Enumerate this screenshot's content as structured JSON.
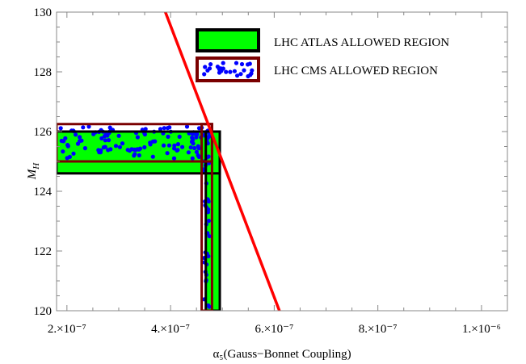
{
  "chart_data": {
    "type": "area",
    "xlabel": "α₅(Gauss−Bonnet Coupling)",
    "ylabel": "M_H",
    "xlim": [
      1.8e-07,
      1.05e-06
    ],
    "ylim": [
      120,
      130
    ],
    "x_ticks": [
      {
        "value": 2e-07,
        "label": "2.×10⁻⁷"
      },
      {
        "value": 4e-07,
        "label": "4.×10⁻⁷"
      },
      {
        "value": 6e-07,
        "label": "6.×10⁻⁷"
      },
      {
        "value": 8e-07,
        "label": "8.×10⁻⁷"
      },
      {
        "value": 1e-06,
        "label": "1.×10⁻⁶"
      }
    ],
    "y_ticks": [
      {
        "value": 120,
        "label": "120"
      },
      {
        "value": 122,
        "label": "122"
      },
      {
        "value": 124,
        "label": "124"
      },
      {
        "value": 126,
        "label": "126"
      },
      {
        "value": 128,
        "label": "128"
      },
      {
        "value": 130,
        "label": "130"
      }
    ],
    "grid": false,
    "legend_position": "top-right",
    "series": [
      {
        "name": "LHC ATLAS ALLOWED REGION",
        "style": "filled",
        "color": "#00ff00",
        "border": "#000000",
        "horizontal_band": {
          "x": [
            1.8e-07,
            4.95e-07
          ],
          "y": [
            124.6,
            126.0
          ]
        },
        "vertical_band": {
          "x": [
            4.68e-07,
            4.95e-07
          ],
          "y": [
            120,
            126.0
          ]
        }
      },
      {
        "name": "LHC CMS ALLOWED REGION",
        "style": "dotted",
        "color": "#0000ff",
        "border": "#7a0000",
        "horizontal_band": {
          "x": [
            1.8e-07,
            4.8e-07
          ],
          "y": [
            125.0,
            126.25
          ]
        },
        "vertical_band": {
          "x": [
            4.6e-07,
            4.8e-07
          ],
          "y": [
            120,
            126.25
          ]
        }
      },
      {
        "name": "",
        "style": "line",
        "color": "#ff0000",
        "x": [
          3.9e-07,
          6.1e-07
        ],
        "y": [
          130,
          120
        ]
      }
    ]
  }
}
